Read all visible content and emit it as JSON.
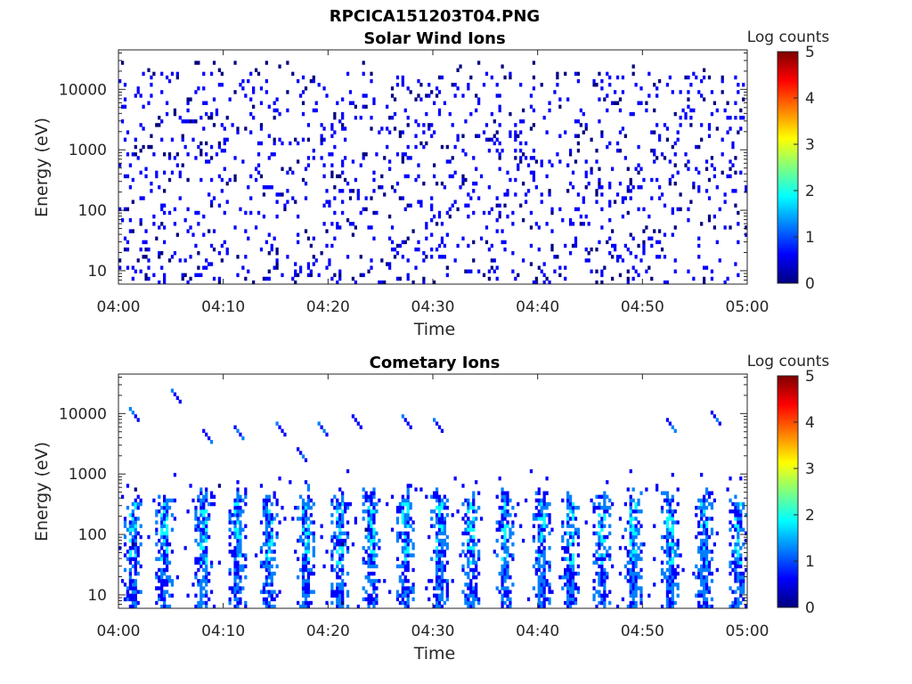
{
  "figure_title": "RPCICA151203T04.PNG",
  "colormap": [
    "#00007f",
    "#0000ff",
    "#007fff",
    "#00ffff",
    "#7fff7f",
    "#ffff00",
    "#ff7f00",
    "#ff0000",
    "#7f0000"
  ],
  "chart_data": [
    {
      "type": "heatmap",
      "title": "Solar Wind Ions",
      "xlabel": "Time",
      "ylabel": "Energy (eV)",
      "yscale": "log",
      "xlim": [
        "04:00",
        "05:00"
      ],
      "ylim": [
        6,
        45000
      ],
      "xticks": [
        "04:00",
        "04:10",
        "04:20",
        "04:30",
        "04:40",
        "04:50",
        "05:00"
      ],
      "yticks": [
        {
          "value": 10,
          "label": "10"
        },
        {
          "value": 100,
          "label": "100"
        },
        {
          "value": 1000,
          "label": "1000"
        },
        {
          "value": 10000,
          "label": "10000"
        }
      ],
      "colorbar": {
        "label": "Log counts",
        "range": [
          0,
          5
        ],
        "ticks": [
          "0",
          "1",
          "2",
          "3",
          "4",
          "5"
        ]
      },
      "pattern": "sparse",
      "seed": 7,
      "bursts": []
    },
    {
      "type": "heatmap",
      "title": "Cometary Ions",
      "xlabel": "Time",
      "ylabel": "Energy (eV)",
      "yscale": "log",
      "xlim": [
        "04:00",
        "05:00"
      ],
      "ylim": [
        6,
        45000
      ],
      "xticks": [
        "04:00",
        "04:10",
        "04:20",
        "04:30",
        "04:40",
        "04:50",
        "05:00"
      ],
      "yticks": [
        {
          "value": 10,
          "label": "10"
        },
        {
          "value": 100,
          "label": "100"
        },
        {
          "value": 1000,
          "label": "1000"
        },
        {
          "value": 10000,
          "label": "10000"
        }
      ],
      "colorbar": {
        "label": "Log counts",
        "range": [
          0,
          5
        ],
        "ticks": [
          "0",
          "1",
          "2",
          "3",
          "4",
          "5"
        ]
      },
      "pattern": "bursts",
      "seed": 13,
      "bursts": [
        1.0,
        4.2,
        7.9,
        11.0,
        14.2,
        17.5,
        20.8,
        23.8,
        27.0,
        30.4,
        33.3,
        36.7,
        40.0,
        42.8,
        45.8,
        48.8,
        52.3,
        55.6,
        58.9
      ],
      "high_energy_streaks": [
        {
          "t": 1.2,
          "e": 12000
        },
        {
          "t": 5.1,
          "e": 25000
        },
        {
          "t": 8.0,
          "e": 5000
        },
        {
          "t": 11.0,
          "e": 6000
        },
        {
          "t": 15.2,
          "e": 7000
        },
        {
          "t": 17.2,
          "e": 2500
        },
        {
          "t": 19.2,
          "e": 7000
        },
        {
          "t": 22.4,
          "e": 8500
        },
        {
          "t": 27.0,
          "e": 9000
        },
        {
          "t": 30.2,
          "e": 7500
        },
        {
          "t": 52.3,
          "e": 7500
        },
        {
          "t": 56.5,
          "e": 11000
        }
      ]
    }
  ]
}
